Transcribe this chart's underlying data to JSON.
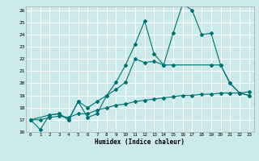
{
  "xlabel": "Humidex (Indice chaleur)",
  "bg_color": "#cceaea",
  "grid_color": "#ffffff",
  "line_color": "#007070",
  "x_min": 0,
  "x_max": 23,
  "y_min": 16,
  "y_max": 26,
  "series1_x": [
    0,
    1,
    2,
    3,
    4,
    5,
    6,
    7,
    8,
    9,
    10,
    11,
    12,
    13,
    14,
    15,
    16,
    17,
    18,
    19,
    20,
    21,
    22,
    23
  ],
  "series1_y": [
    17.0,
    16.2,
    17.4,
    17.5,
    17.0,
    18.5,
    17.2,
    17.5,
    19.0,
    20.1,
    21.5,
    23.2,
    25.1,
    22.4,
    21.5,
    24.1,
    26.5,
    26.0,
    24.0,
    24.1,
    21.5,
    20.0,
    19.2,
    19.0
  ],
  "series2_x": [
    0,
    2,
    3,
    4,
    5,
    6,
    7,
    8,
    9,
    10,
    11,
    12,
    13,
    14,
    15,
    19,
    20,
    21,
    22,
    23
  ],
  "series2_y": [
    17.0,
    17.4,
    17.5,
    17.0,
    18.5,
    18.0,
    18.5,
    19.0,
    19.5,
    20.1,
    22.0,
    21.7,
    21.8,
    21.5,
    21.5,
    21.5,
    21.5,
    20.0,
    19.2,
    19.0
  ],
  "series3_x": [
    0,
    1,
    2,
    3,
    4,
    5,
    6,
    7,
    8,
    9,
    10,
    11,
    12,
    13,
    14,
    15,
    16,
    17,
    18,
    19,
    20,
    21,
    22,
    23
  ],
  "series3_y": [
    17.0,
    17.0,
    17.2,
    17.3,
    17.2,
    17.5,
    17.5,
    17.8,
    18.0,
    18.2,
    18.3,
    18.5,
    18.6,
    18.7,
    18.8,
    18.9,
    19.0,
    19.0,
    19.1,
    19.1,
    19.2,
    19.2,
    19.2,
    19.3
  ],
  "figsize": [
    3.2,
    2.0
  ],
  "dpi": 100
}
